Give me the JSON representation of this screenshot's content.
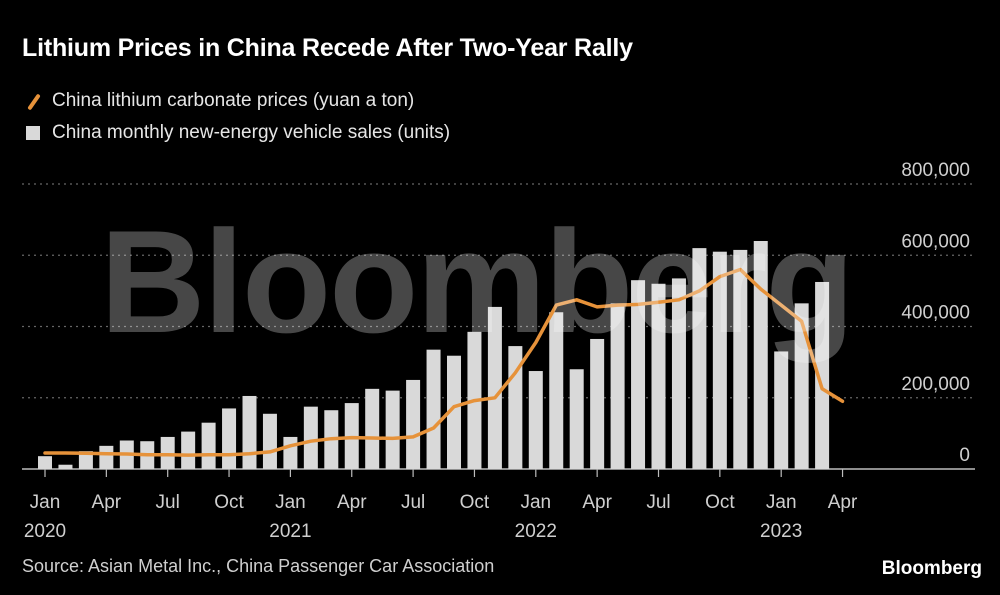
{
  "title": "Lithium Prices in China Recede After Two-Year Rally",
  "legend": {
    "line_label": "China lithium carbonate prices (yuan a ton)",
    "bar_label": "China monthly new-energy vehicle sales (units)"
  },
  "source": "Source: Asian Metal Inc., China Passenger Car Association",
  "brand": "Bloomberg",
  "watermark": "Bloomberg",
  "colors": {
    "line": "#e6923a",
    "bars": "#d9d9d9",
    "grid": "#666666",
    "background": "#000000"
  },
  "chart_data": {
    "type": "bar",
    "ylim": [
      0,
      800000
    ],
    "y_ticks": [
      "0",
      "200,000",
      "400,000",
      "600,000",
      "800,000"
    ],
    "y_tick_values": [
      0,
      200000,
      400000,
      600000,
      800000
    ],
    "x_tick_labels": [
      {
        "index": 0,
        "month": "Jan",
        "year": "2020"
      },
      {
        "index": 3,
        "month": "Apr",
        "year": ""
      },
      {
        "index": 6,
        "month": "Jul",
        "year": ""
      },
      {
        "index": 9,
        "month": "Oct",
        "year": ""
      },
      {
        "index": 12,
        "month": "Jan",
        "year": "2021"
      },
      {
        "index": 15,
        "month": "Apr",
        "year": ""
      },
      {
        "index": 18,
        "month": "Jul",
        "year": ""
      },
      {
        "index": 21,
        "month": "Oct",
        "year": ""
      },
      {
        "index": 24,
        "month": "Jan",
        "year": "2022"
      },
      {
        "index": 27,
        "month": "Apr",
        "year": ""
      },
      {
        "index": 30,
        "month": "Jul",
        "year": ""
      },
      {
        "index": 33,
        "month": "Oct",
        "year": ""
      },
      {
        "index": 36,
        "month": "Jan",
        "year": "2023"
      },
      {
        "index": 39,
        "month": "Apr",
        "year": ""
      }
    ],
    "series": [
      {
        "name": "China monthly new-energy vehicle sales (units)",
        "kind": "bar",
        "values": [
          36000,
          12000,
          50000,
          65000,
          80000,
          78000,
          90000,
          105000,
          130000,
          170000,
          205000,
          155000,
          90000,
          175000,
          165000,
          185000,
          225000,
          220000,
          250000,
          335000,
          318000,
          385000,
          455000,
          345000,
          275000,
          440000,
          280000,
          365000,
          465000,
          530000,
          520000,
          535000,
          620000,
          610000,
          615000,
          640000,
          330000,
          465000,
          525000
        ]
      },
      {
        "name": "China lithium carbonate prices (yuan a ton)",
        "kind": "line",
        "values": [
          45000,
          45000,
          44000,
          43000,
          42000,
          40000,
          40000,
          39000,
          40000,
          40000,
          43000,
          48000,
          65000,
          78000,
          85000,
          88000,
          87000,
          86000,
          90000,
          115000,
          175000,
          192000,
          200000,
          270000,
          355000,
          460000,
          475000,
          455000,
          460000,
          462000,
          468000,
          475000,
          500000,
          540000,
          560000,
          505000,
          460000,
          415000,
          225000,
          190000
        ]
      }
    ]
  }
}
